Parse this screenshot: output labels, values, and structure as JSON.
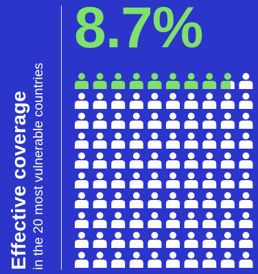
{
  "panel": {
    "title": "Effective coverage",
    "subtitle": "in the 20 most vulnerable countries",
    "stat": "8.7%"
  },
  "chart_data": {
    "type": "pictogram",
    "rows": 10,
    "cols": 10,
    "total": 100,
    "highlighted": 8.7,
    "highlight_color": "#7fe06a",
    "base_color": "#ffffff"
  },
  "colors": {
    "background": "#2b35c9",
    "accent": "#7fe06a",
    "text": "#ffffff"
  }
}
